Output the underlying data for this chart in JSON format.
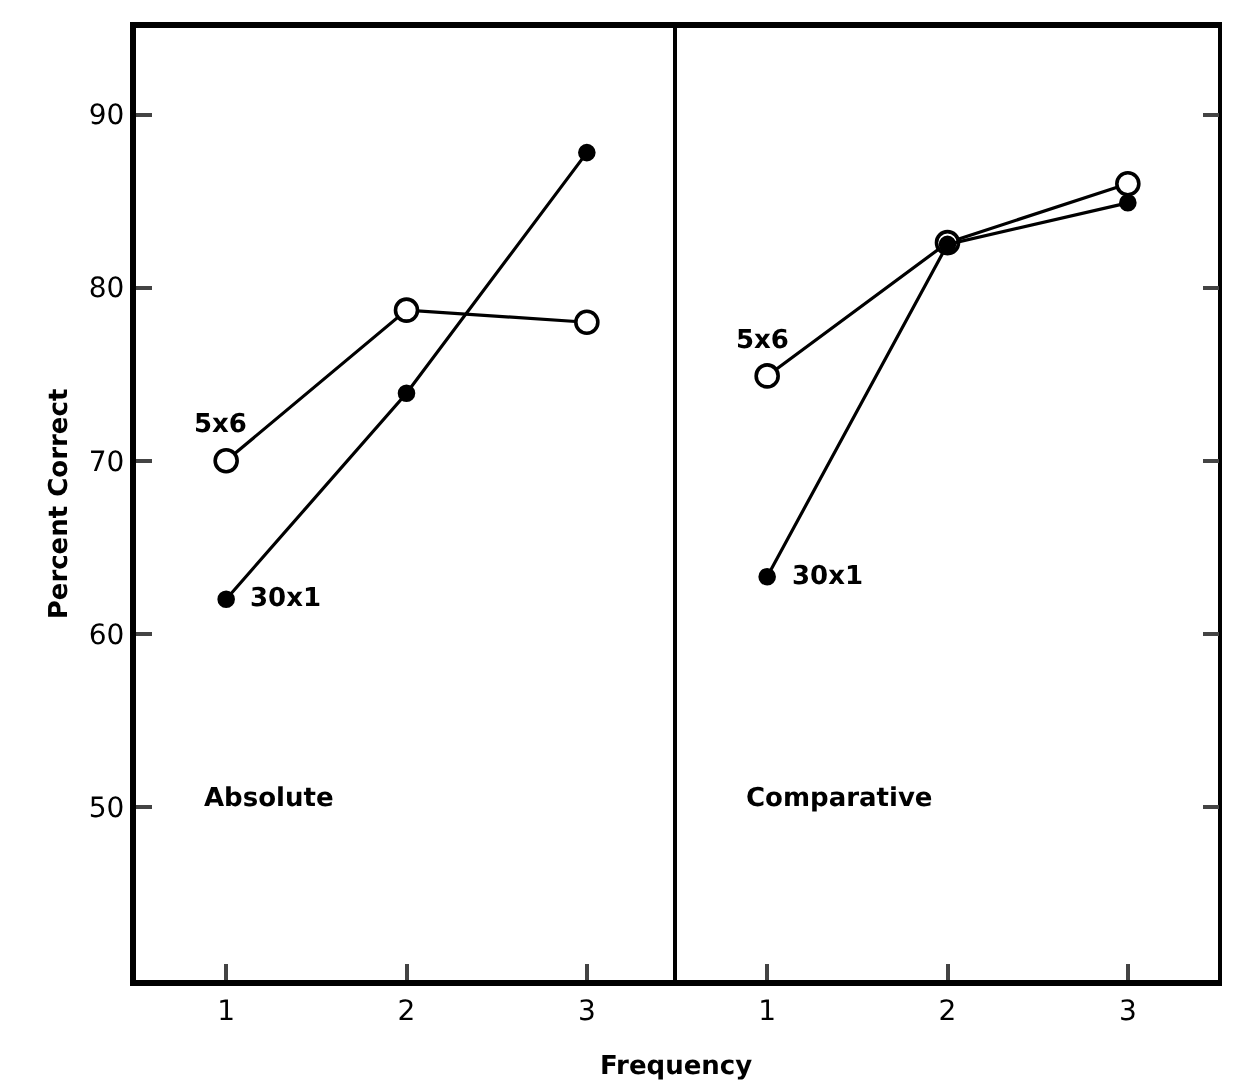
{
  "chart_data": [
    {
      "type": "line",
      "xlabel": "Frequency",
      "ylabel": "Percent Correct",
      "x": [
        1,
        2,
        3
      ],
      "xlim": [
        0.5,
        3.5
      ],
      "xticks": [
        1,
        2,
        3
      ],
      "ylim": [
        40,
        95
      ],
      "yticks": [
        50,
        60,
        70,
        80,
        90
      ],
      "marker": "circle",
      "line_style": "solid",
      "annotations": [
        "Absolute"
      ],
      "series": [
        {
          "name": "5x6",
          "color": "#000000",
          "values": [
            70,
            78.7,
            78
          ]
        },
        {
          "name": "30x1",
          "color": "#000000",
          "values": [
            62,
            73.9,
            87.8
          ]
        }
      ]
    },
    {
      "type": "line",
      "x": [
        1,
        2,
        3
      ],
      "xlim": [
        0.5,
        3.5
      ],
      "xticks": [
        1,
        2,
        3
      ],
      "ylim": [
        40,
        95
      ],
      "yticks": [
        50,
        60,
        70,
        80,
        90
      ],
      "tick_labels": "x",
      "marker": "circle",
      "line_style": "solid",
      "annotations": [
        "Comparative"
      ],
      "series": [
        {
          "name": "5x6",
          "color": "#000000",
          "values": [
            74.9,
            82.6,
            86
          ]
        },
        {
          "name": "30x1",
          "color": "#000000",
          "values": [
            63.3,
            82.5,
            84.9
          ]
        }
      ]
    }
  ]
}
